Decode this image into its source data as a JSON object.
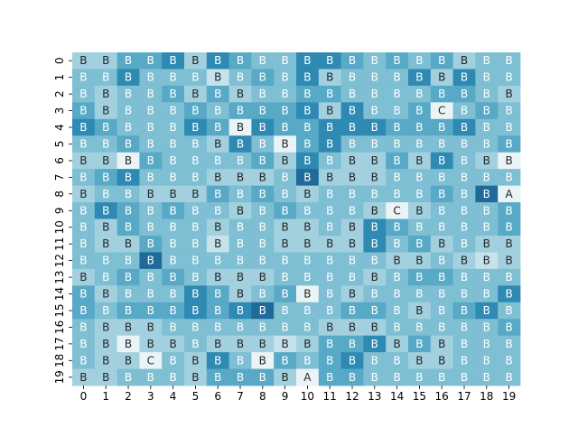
{
  "chart_data": {
    "type": "heatmap",
    "title": "",
    "xlabel": "",
    "ylabel": "",
    "x_ticks": [
      "0",
      "1",
      "2",
      "3",
      "4",
      "5",
      "6",
      "7",
      "8",
      "9",
      "10",
      "11",
      "12",
      "13",
      "14",
      "15",
      "16",
      "17",
      "18",
      "19"
    ],
    "y_ticks": [
      "0",
      "1",
      "2",
      "3",
      "4",
      "5",
      "6",
      "7",
      "8",
      "9",
      "10",
      "11",
      "12",
      "13",
      "14",
      "15",
      "16",
      "17",
      "18",
      "19"
    ],
    "colorbar": false,
    "colors": {
      "lightest": "#eaf3f6",
      "light": "#c6e2ea",
      "mid_light": "#a2d0de",
      "mid": "#7fbfd3",
      "mid_dark": "#58a9c6",
      "dark": "#2e8ab3",
      "darkest": "#1f6a99"
    },
    "levels": [
      [
        2,
        2,
        4,
        4,
        5,
        2,
        5,
        4,
        3,
        3,
        5,
        5,
        4,
        3,
        4,
        3,
        4,
        2,
        3,
        3
      ],
      [
        3,
        3,
        5,
        3,
        3,
        3,
        1,
        3,
        4,
        3,
        5,
        2,
        3,
        3,
        3,
        5,
        2,
        5,
        3,
        3
      ],
      [
        3,
        2,
        3,
        3,
        4,
        2,
        4,
        2,
        3,
        3,
        4,
        4,
        3,
        3,
        3,
        3,
        4,
        4,
        3,
        2
      ],
      [
        4,
        2,
        3,
        3,
        3,
        4,
        3,
        4,
        4,
        4,
        5,
        2,
        5,
        3,
        3,
        4,
        0,
        3,
        4,
        3
      ],
      [
        5,
        4,
        3,
        3,
        3,
        5,
        4,
        0,
        5,
        4,
        4,
        5,
        5,
        5,
        4,
        4,
        4,
        5,
        3,
        3
      ],
      [
        3,
        3,
        4,
        3,
        3,
        3,
        2,
        5,
        3,
        0,
        4,
        5,
        3,
        3,
        3,
        3,
        3,
        3,
        3,
        4
      ],
      [
        2,
        2,
        0,
        4,
        3,
        3,
        3,
        3,
        4,
        2,
        5,
        3,
        2,
        2,
        4,
        2,
        5,
        3,
        2,
        0
      ],
      [
        3,
        4,
        5,
        3,
        3,
        3,
        2,
        2,
        2,
        3,
        6,
        2,
        2,
        2,
        3,
        3,
        3,
        3,
        3,
        3
      ],
      [
        2,
        3,
        3,
        2,
        2,
        2,
        4,
        3,
        4,
        3,
        2,
        3,
        3,
        3,
        3,
        3,
        4,
        3,
        6,
        0
      ],
      [
        3,
        5,
        4,
        3,
        4,
        3,
        3,
        2,
        3,
        4,
        3,
        3,
        3,
        2,
        0,
        2,
        3,
        3,
        3,
        4
      ],
      [
        3,
        2,
        4,
        3,
        3,
        3,
        2,
        3,
        3,
        2,
        2,
        3,
        2,
        5,
        4,
        3,
        3,
        3,
        3,
        4
      ],
      [
        3,
        2,
        2,
        4,
        3,
        3,
        1,
        3,
        3,
        2,
        2,
        2,
        2,
        5,
        3,
        4,
        2,
        3,
        2,
        2
      ],
      [
        3,
        3,
        3,
        6,
        3,
        3,
        3,
        3,
        3,
        3,
        3,
        3,
        3,
        3,
        2,
        2,
        3,
        2,
        1,
        2
      ],
      [
        2,
        3,
        4,
        3,
        4,
        3,
        2,
        2,
        2,
        3,
        3,
        3,
        3,
        2,
        3,
        4,
        4,
        3,
        3,
        3
      ],
      [
        4,
        2,
        3,
        3,
        3,
        5,
        4,
        2,
        3,
        4,
        0,
        3,
        2,
        3,
        3,
        3,
        3,
        3,
        3,
        5
      ],
      [
        4,
        3,
        4,
        4,
        4,
        5,
        4,
        5,
        6,
        3,
        3,
        3,
        4,
        4,
        3,
        2,
        3,
        4,
        5,
        3
      ],
      [
        3,
        2,
        2,
        2,
        3,
        3,
        3,
        3,
        3,
        3,
        3,
        2,
        2,
        2,
        3,
        3,
        3,
        3,
        3,
        4
      ],
      [
        3,
        2,
        0,
        2,
        2,
        3,
        2,
        2,
        2,
        1,
        2,
        4,
        4,
        5,
        2,
        4,
        2,
        3,
        3,
        3
      ],
      [
        3,
        2,
        2,
        0,
        3,
        2,
        5,
        3,
        0,
        4,
        3,
        4,
        5,
        3,
        3,
        2,
        2,
        3,
        3,
        3
      ],
      [
        2,
        2,
        3,
        3,
        3,
        2,
        4,
        4,
        4,
        2,
        0,
        4,
        4,
        3,
        3,
        3,
        3,
        3,
        3,
        3
      ]
    ],
    "labels": [
      "BBBBBBBBBBBBBBBBBBBB",
      "BBBBBBBBBBBBBBBBBBBB",
      "BBBBBBBBBBBBBBBBBBBB",
      "BBBBBBBBBBBBBBBBCBBB",
      "BBBBBBBBBBBBBBBBBBBB",
      "BBBBBBBBBBBBBBBBBBBB",
      "BBBBBBBBBBBBBBBBBBBB",
      "BBBBBBBBBBBBBBBBBBBB",
      "BBBBBBBBBBBBBBBBBBBA",
      "BBBBBBBBBBBBBBCBBBBB",
      "BBBBBBBBBBBBBBBBBBBB",
      "BBBBBBBBBBBBBBBBBBBB",
      "BBBBBBBBBBBBBBBBBBBB",
      "BBBBBBBBBBBBBBBBBBBB",
      "BBBBBBBBBBBBBBBBBBBB",
      "BBBBBBBBBBBBBBBBBBBB",
      "BBBBBBBBBBBBBBBBBBBB",
      "BBBBBBBBBBBBBBBBBBBB",
      "BBBCBBBBBBBBBBBBBBBB",
      "BBBBBBBBBBABBBBBBBBB"
    ]
  }
}
